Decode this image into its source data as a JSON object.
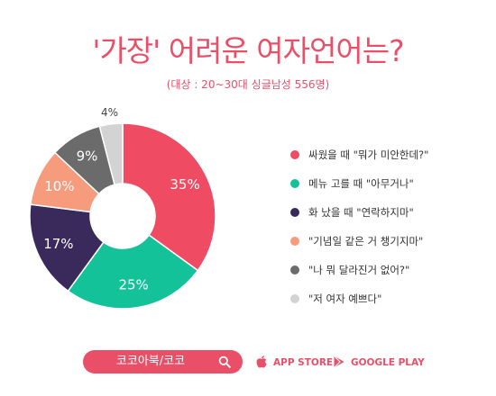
{
  "header": {
    "title": "'가장' 어려운 여자언어는?",
    "subtitle": "(대상 : 20~30대 싱글남성 556명)"
  },
  "chart_data": {
    "type": "pie",
    "donut": true,
    "title": "'가장' 어려운 여자언어는?",
    "subtitle": "(대상 : 20~30대 싱글남성 556명)",
    "legend_position": "right",
    "slices": [
      {
        "label": "싸웠을 때 \"뭐가 미안한데?\"",
        "value": 35,
        "display": "35%",
        "color": "#ef4b63"
      },
      {
        "label": "메뉴 고를 때 \"아무거나\"",
        "value": 25,
        "display": "25%",
        "color": "#14c29a"
      },
      {
        "label": "화 났을 때 \"연락하지마\"",
        "value": 17,
        "display": "17%",
        "color": "#3a2a5c"
      },
      {
        "label": "\"기념일 같은 거 챙기지마\"",
        "value": 10,
        "display": "10%",
        "color": "#f79b7d"
      },
      {
        "label": "\"나 뭐 달라진거 없어?\"",
        "value": 9,
        "display": "9%",
        "color": "#6b6b6b"
      },
      {
        "label": "\"저 여자 예쁘다\"",
        "value": 4,
        "display": "4%",
        "color": "#d3d3d3"
      }
    ]
  },
  "footer": {
    "search_text": "코코아북/코코",
    "app_store": "APP STORE",
    "google_play": "GOOGLE PLAY",
    "accent": "#ea4f68"
  }
}
